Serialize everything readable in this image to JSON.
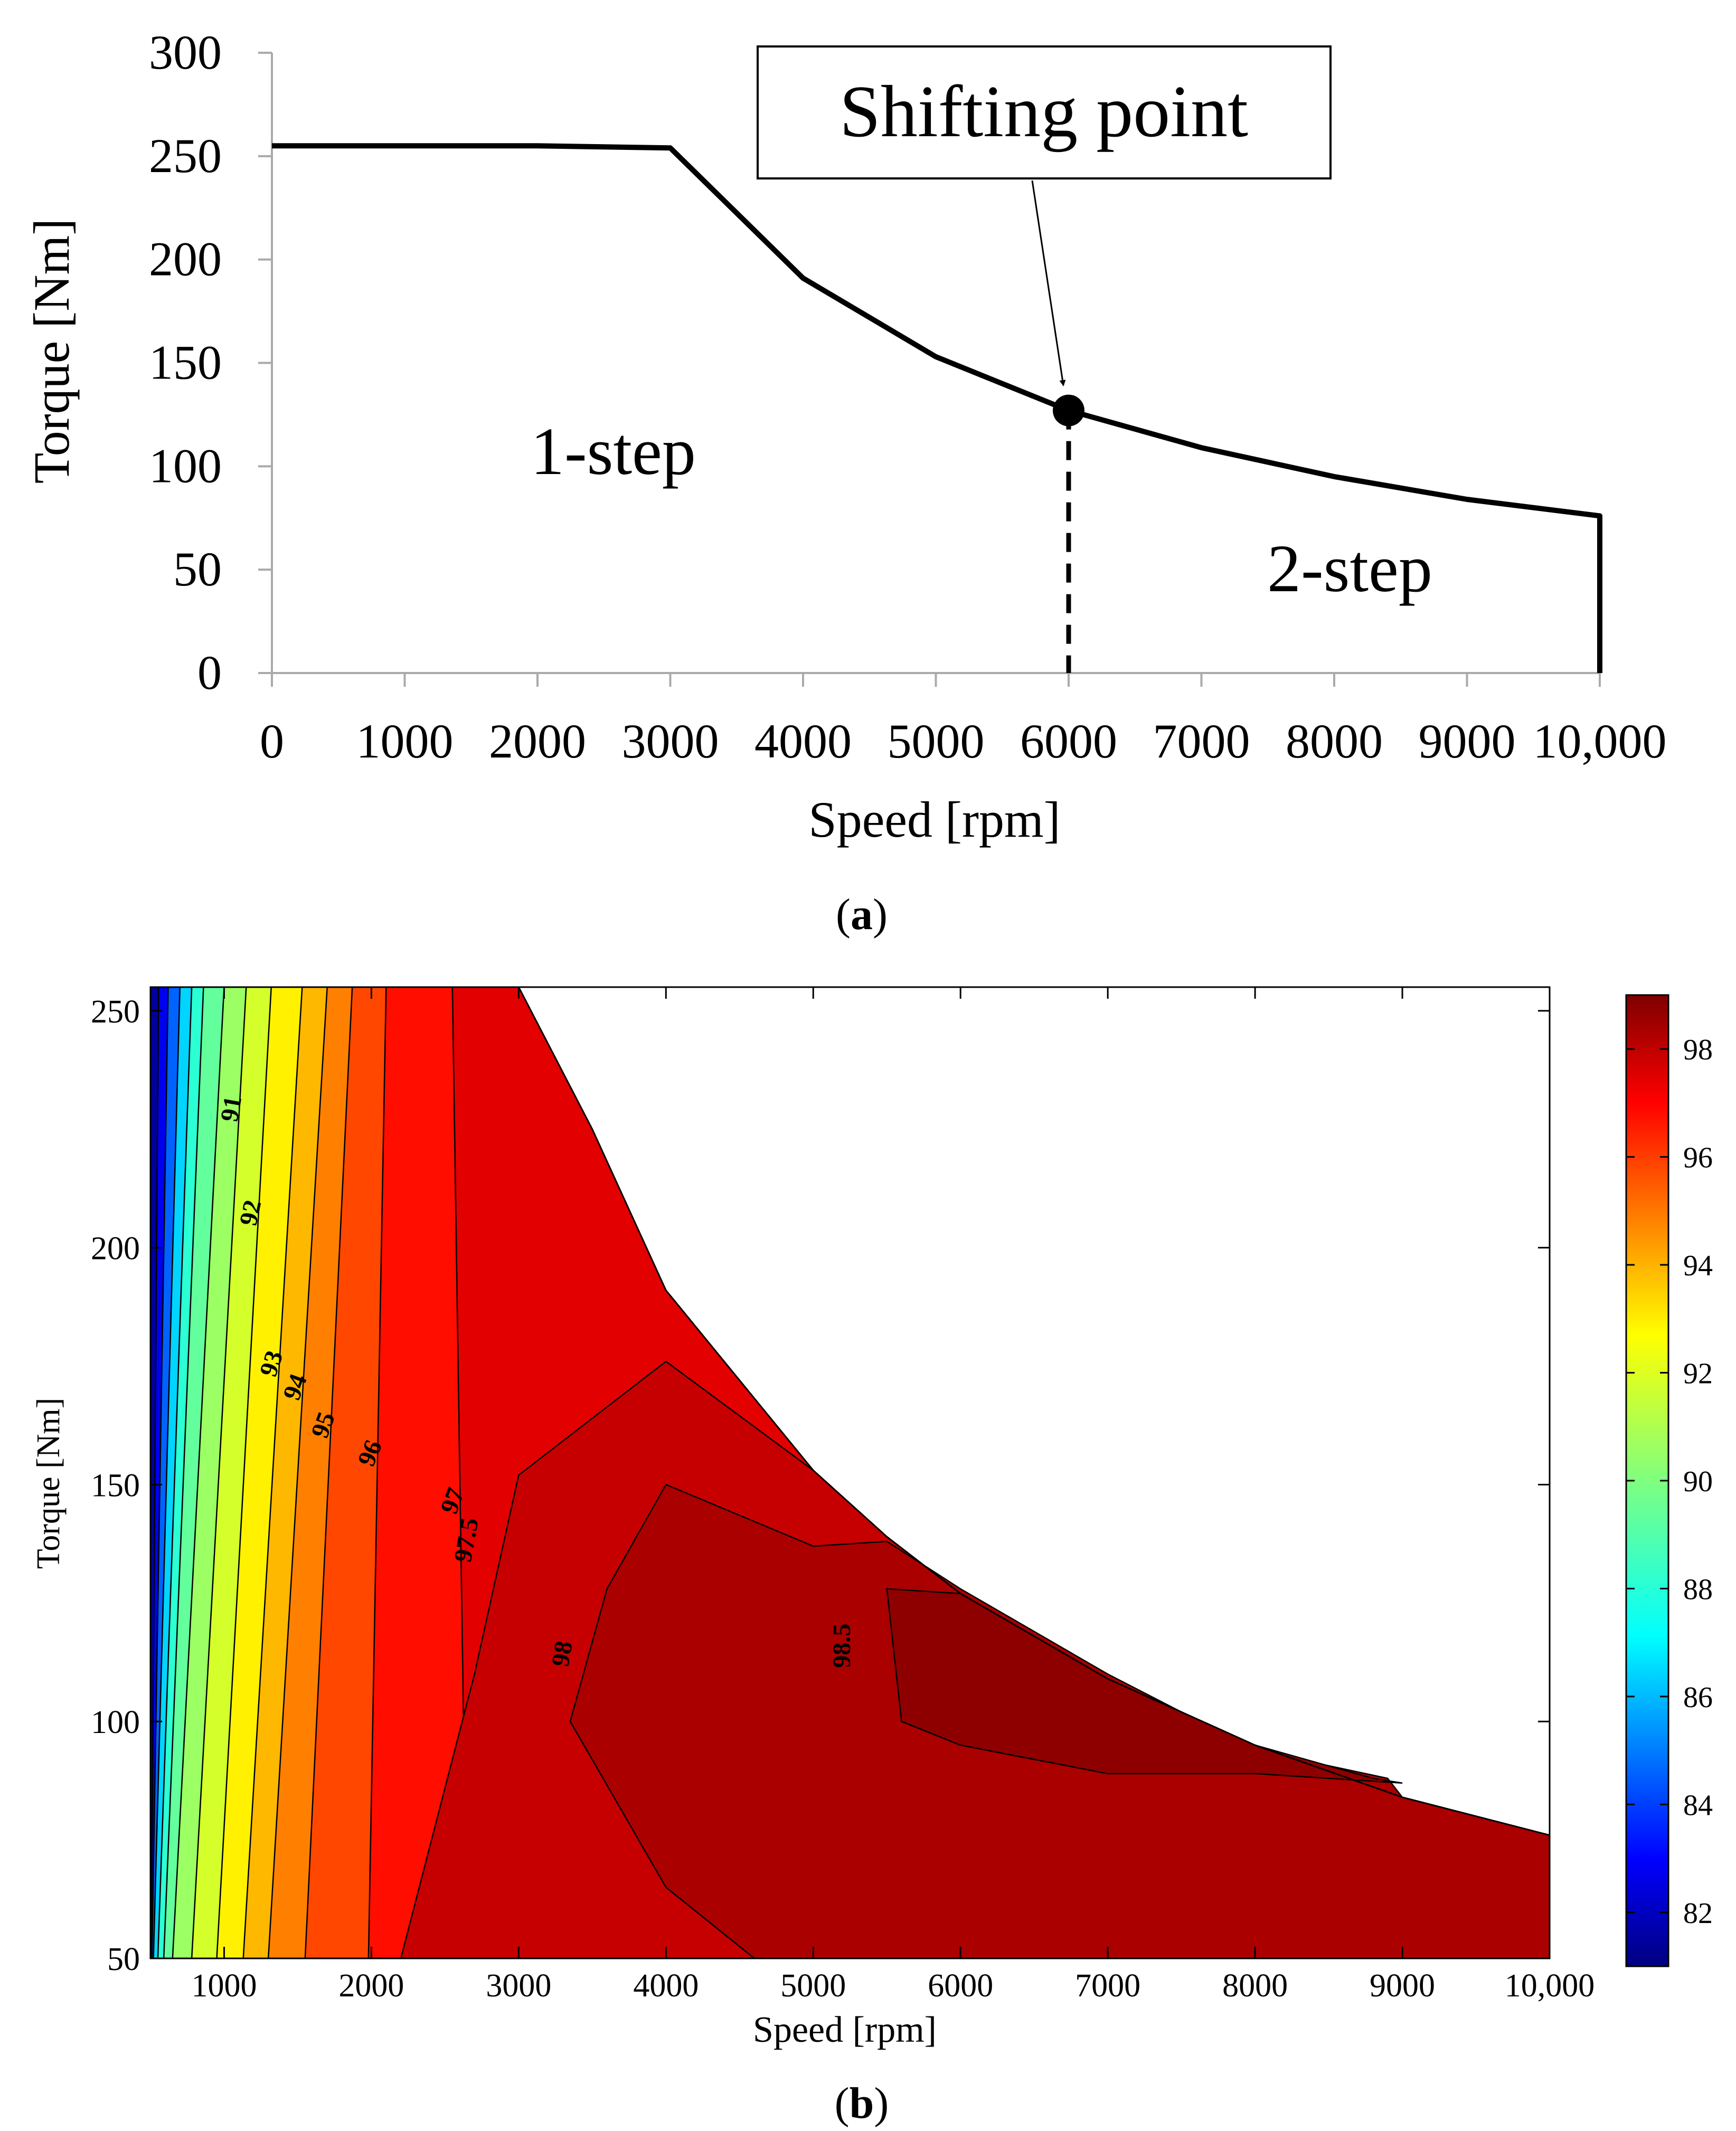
{
  "chart_data": [
    {
      "type": "line",
      "caption": "a",
      "xlabel": "Speed [rpm]",
      "ylabel": "Torque [Nm]",
      "xlim": [
        0,
        10000
      ],
      "ylim": [
        0,
        300
      ],
      "xticks": [
        0,
        1000,
        2000,
        3000,
        4000,
        5000,
        6000,
        7000,
        8000,
        9000,
        10000
      ],
      "xtick_labels": [
        "0",
        "1000",
        "2000",
        "3000",
        "4000",
        "5000",
        "6000",
        "7000",
        "8000",
        "9000",
        "10,000"
      ],
      "yticks": [
        0,
        50,
        100,
        150,
        200,
        250,
        300
      ],
      "ytick_labels": [
        "0",
        "50",
        "100",
        "150",
        "200",
        "250",
        "300"
      ],
      "grid": false,
      "series": [
        {
          "x": [
            0,
            1000,
            2000,
            3000,
            4000,
            5000,
            6000,
            7000,
            8000,
            9000,
            10000,
            10000
          ],
          "y": [
            255,
            255,
            255,
            254,
            191,
            153,
            127,
            109,
            95,
            84,
            76,
            0
          ],
          "color": "#000000"
        }
      ],
      "shifting_point": {
        "x": 6000,
        "y": 127,
        "label": "Shifting point"
      },
      "region_labels": [
        "1-step",
        "2-step"
      ]
    },
    {
      "type": "contour",
      "caption": "b",
      "xlabel": "Speed [rpm]",
      "ylabel": "Torque [Nm]",
      "xlim": [
        500,
        10000
      ],
      "ylim": [
        50,
        255
      ],
      "xticks": [
        1000,
        2000,
        3000,
        4000,
        5000,
        6000,
        7000,
        8000,
        9000,
        10000
      ],
      "xtick_labels": [
        "1000",
        "2000",
        "3000",
        "4000",
        "5000",
        "6000",
        "7000",
        "8000",
        "9000",
        "10,000"
      ],
      "yticks": [
        50,
        100,
        150,
        200,
        250
      ],
      "ytick_labels": [
        "50",
        "100",
        "150",
        "200",
        "250"
      ],
      "colorbar": {
        "range": [
          81,
          99
        ],
        "ticks": [
          82,
          84,
          86,
          88,
          90,
          92,
          94,
          96,
          98
        ],
        "colormap": "jet"
      },
      "envelope": {
        "x": [
          500,
          3000,
          3500,
          4000,
          5000,
          5500,
          6000,
          7000,
          8000,
          9000,
          10000
        ],
        "y": [
          255,
          255,
          225,
          191,
          153,
          139,
          127,
          109,
          95,
          84,
          76
        ]
      },
      "contour_levels": [
        {
          "level": 82,
          "x50": 505,
          "x255": 555,
          "label": ""
        },
        {
          "level": 84,
          "x50": 510,
          "x255": 620,
          "label": ""
        },
        {
          "level": 86,
          "x50": 520,
          "x255": 700,
          "label": ""
        },
        {
          "level": 88,
          "x50": 550,
          "x255": 780,
          "label": ""
        },
        {
          "level": 89,
          "x50": 590,
          "x255": 860,
          "label": ""
        },
        {
          "level": 90,
          "x50": 650,
          "x255": 1000,
          "label": ""
        },
        {
          "level": 91,
          "x50": 780,
          "x255": 1150,
          "label": "91"
        },
        {
          "level": 92,
          "x50": 950,
          "x255": 1320,
          "label": "92"
        },
        {
          "level": 93,
          "x50": 1130,
          "x255": 1530,
          "label": "93"
        },
        {
          "level": 94,
          "x50": 1300,
          "x255": 1700,
          "label": "94"
        },
        {
          "level": 95,
          "x50": 1550,
          "x255": 1870,
          "label": "95"
        },
        {
          "level": 96,
          "x50": 1980,
          "x255": 2100,
          "label": "96"
        },
        {
          "level": 97,
          "x50": 2650,
          "x255": 2550,
          "label": "97"
        }
      ],
      "inner_contours": [
        {
          "level": 97.5,
          "label": "97.5",
          "x": [
            3000,
            4000,
            5000,
            5500
          ],
          "y": [
            152,
            176,
            153,
            139
          ]
        },
        {
          "level": 98,
          "label": "98",
          "x": [
            4000,
            5000,
            5500,
            6000,
            7000,
            8000,
            8900
          ],
          "y": [
            150,
            137,
            138,
            128,
            110,
            94,
            88
          ]
        },
        {
          "level": 98.5,
          "label": "98.5",
          "x": [
            5500,
            5600,
            6000,
            7000,
            8000,
            9000
          ],
          "y": [
            128,
            100,
            95,
            89,
            89,
            87
          ]
        }
      ]
    }
  ]
}
